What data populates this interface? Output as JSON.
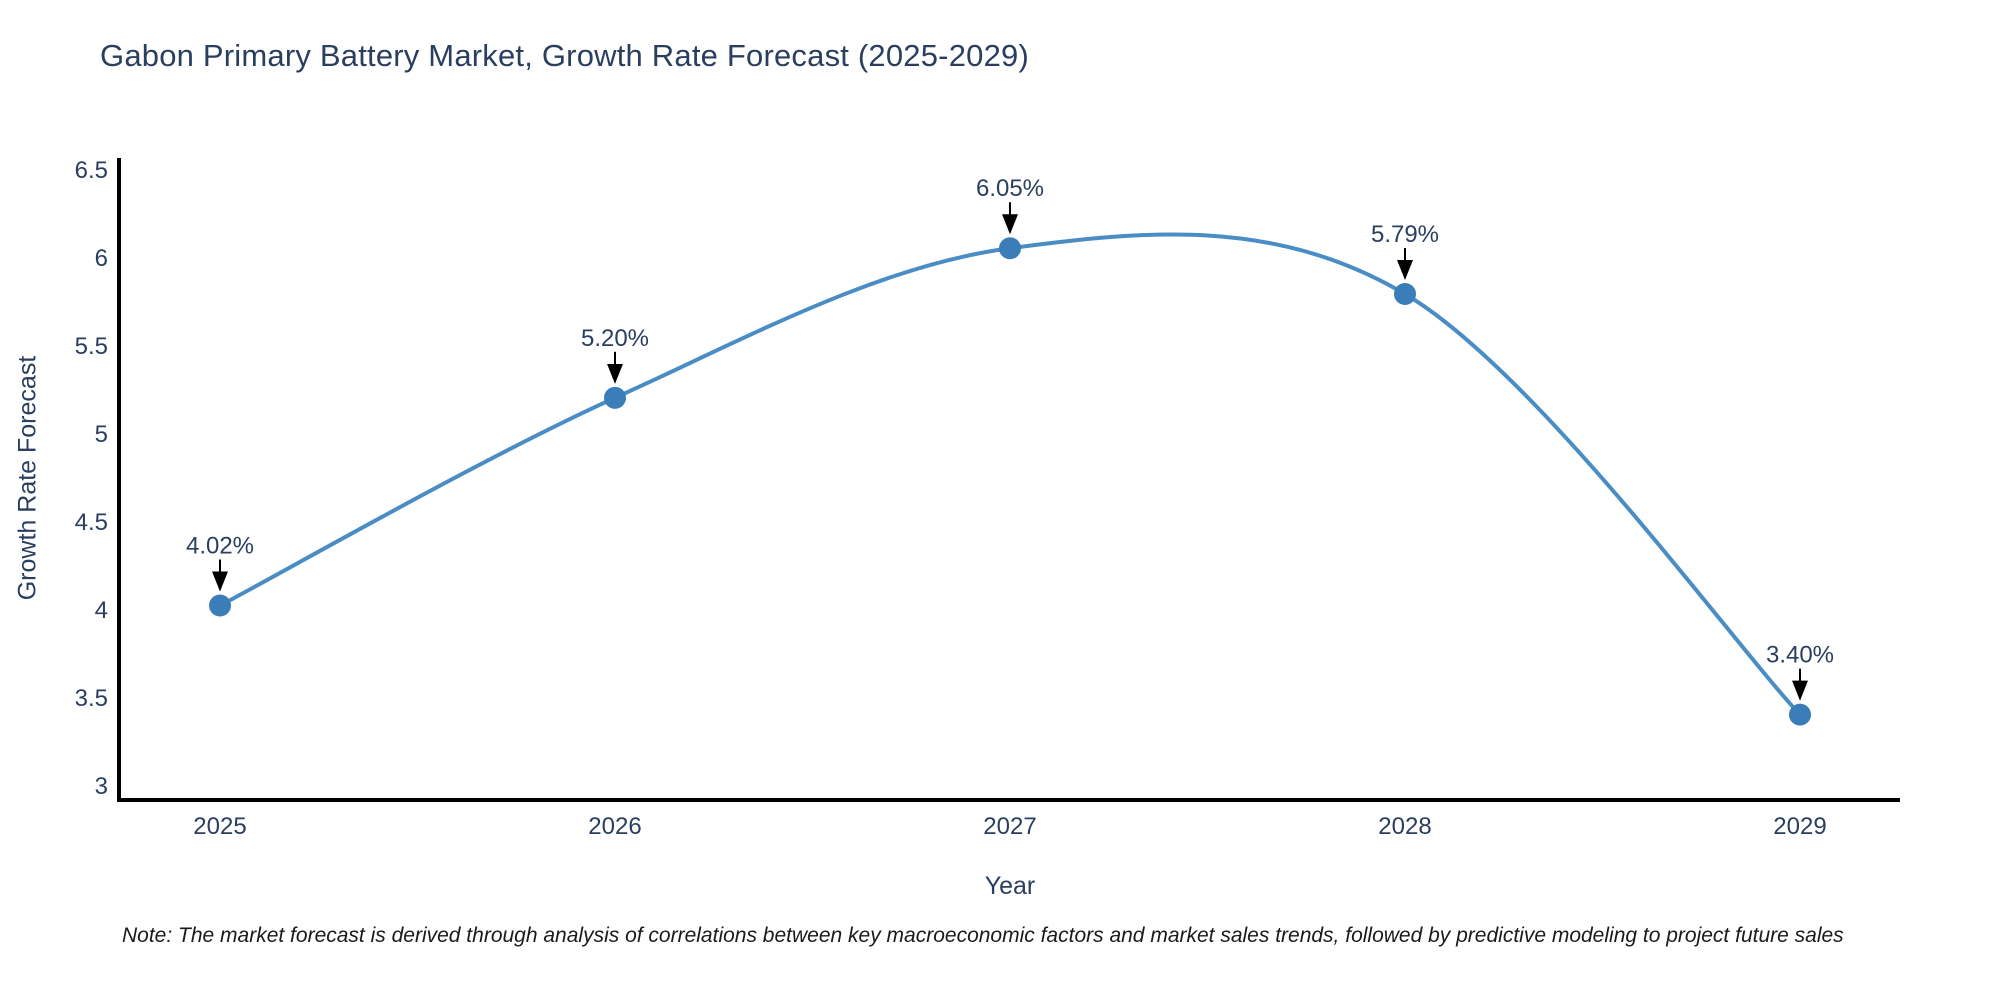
{
  "title": "Gabon Primary Battery Market, Growth Rate Forecast (2025-2029)",
  "note": "Note: The market forecast is derived through analysis of correlations between key macroeconomic factors and market sales trends, followed by predictive modeling to project future sales",
  "chart_data": {
    "type": "line",
    "title": "Gabon Primary Battery Market, Growth Rate Forecast (2025-2029)",
    "xlabel": "Year",
    "ylabel": "Growth Rate Forecast",
    "categories": [
      "2025",
      "2026",
      "2027",
      "2028",
      "2029"
    ],
    "values": [
      4.02,
      5.2,
      6.05,
      5.79,
      3.4
    ],
    "point_labels": [
      "4.02%",
      "5.20%",
      "6.05%",
      "5.79%",
      "3.40%"
    ],
    "yticks": [
      3,
      3.5,
      4,
      4.5,
      5,
      5.5,
      6,
      6.5
    ],
    "ytick_labels": [
      "3",
      "3.5",
      "4",
      "4.5",
      "5",
      "5.5",
      "6",
      "6.5"
    ],
    "ylim": [
      2.915,
      6.54
    ],
    "line_shape": "spline",
    "grid": false,
    "legend": "none",
    "annotation_style": "value labels above points with black down-arrows",
    "colors": {
      "line": "#4a8cc4",
      "marker": "#3b7db9",
      "axis": "#000000",
      "text": "#2a3f5f",
      "arrow": "#000000"
    }
  }
}
